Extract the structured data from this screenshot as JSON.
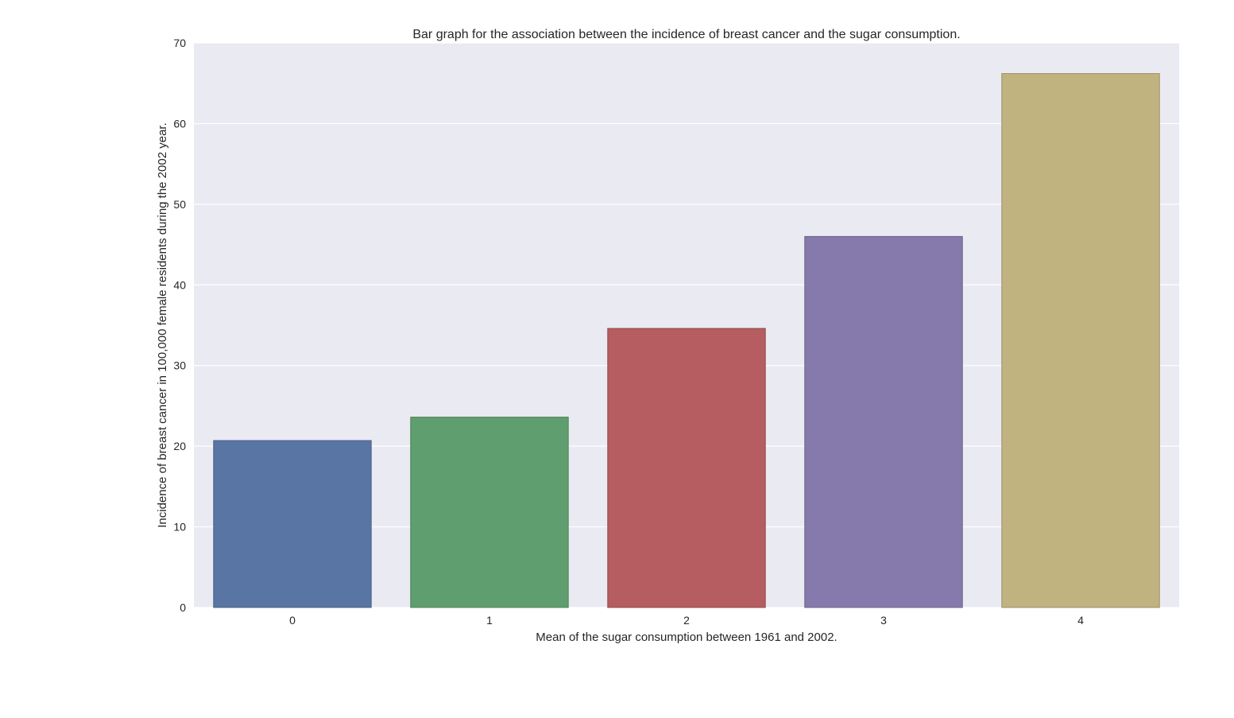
{
  "chart_data": {
    "type": "bar",
    "title": "Bar graph for the association between the incidence of breast cancer and the sugar consumption.",
    "xlabel": "Mean of the sugar consumption between 1961 and 2002.",
    "ylabel": "Incidence of breast cancer in 100,000 female residents during the 2002 year.",
    "categories": [
      "0",
      "1",
      "2",
      "3",
      "4"
    ],
    "values": [
      20.7,
      23.6,
      34.6,
      46.0,
      66.2
    ],
    "ylim": [
      0,
      70
    ],
    "yticks": [
      "0",
      "10",
      "20",
      "30",
      "40",
      "50",
      "60",
      "70"
    ],
    "grid": true,
    "colors": [
      "#5975a4",
      "#5f9e6e",
      "#b55d60",
      "#857aab",
      "#c1b37f"
    ],
    "edge_colors": [
      "#4c6186",
      "#4f8259",
      "#91494b",
      "#6b628a",
      "#9b8f66"
    ],
    "background": "#eaeaf2"
  }
}
